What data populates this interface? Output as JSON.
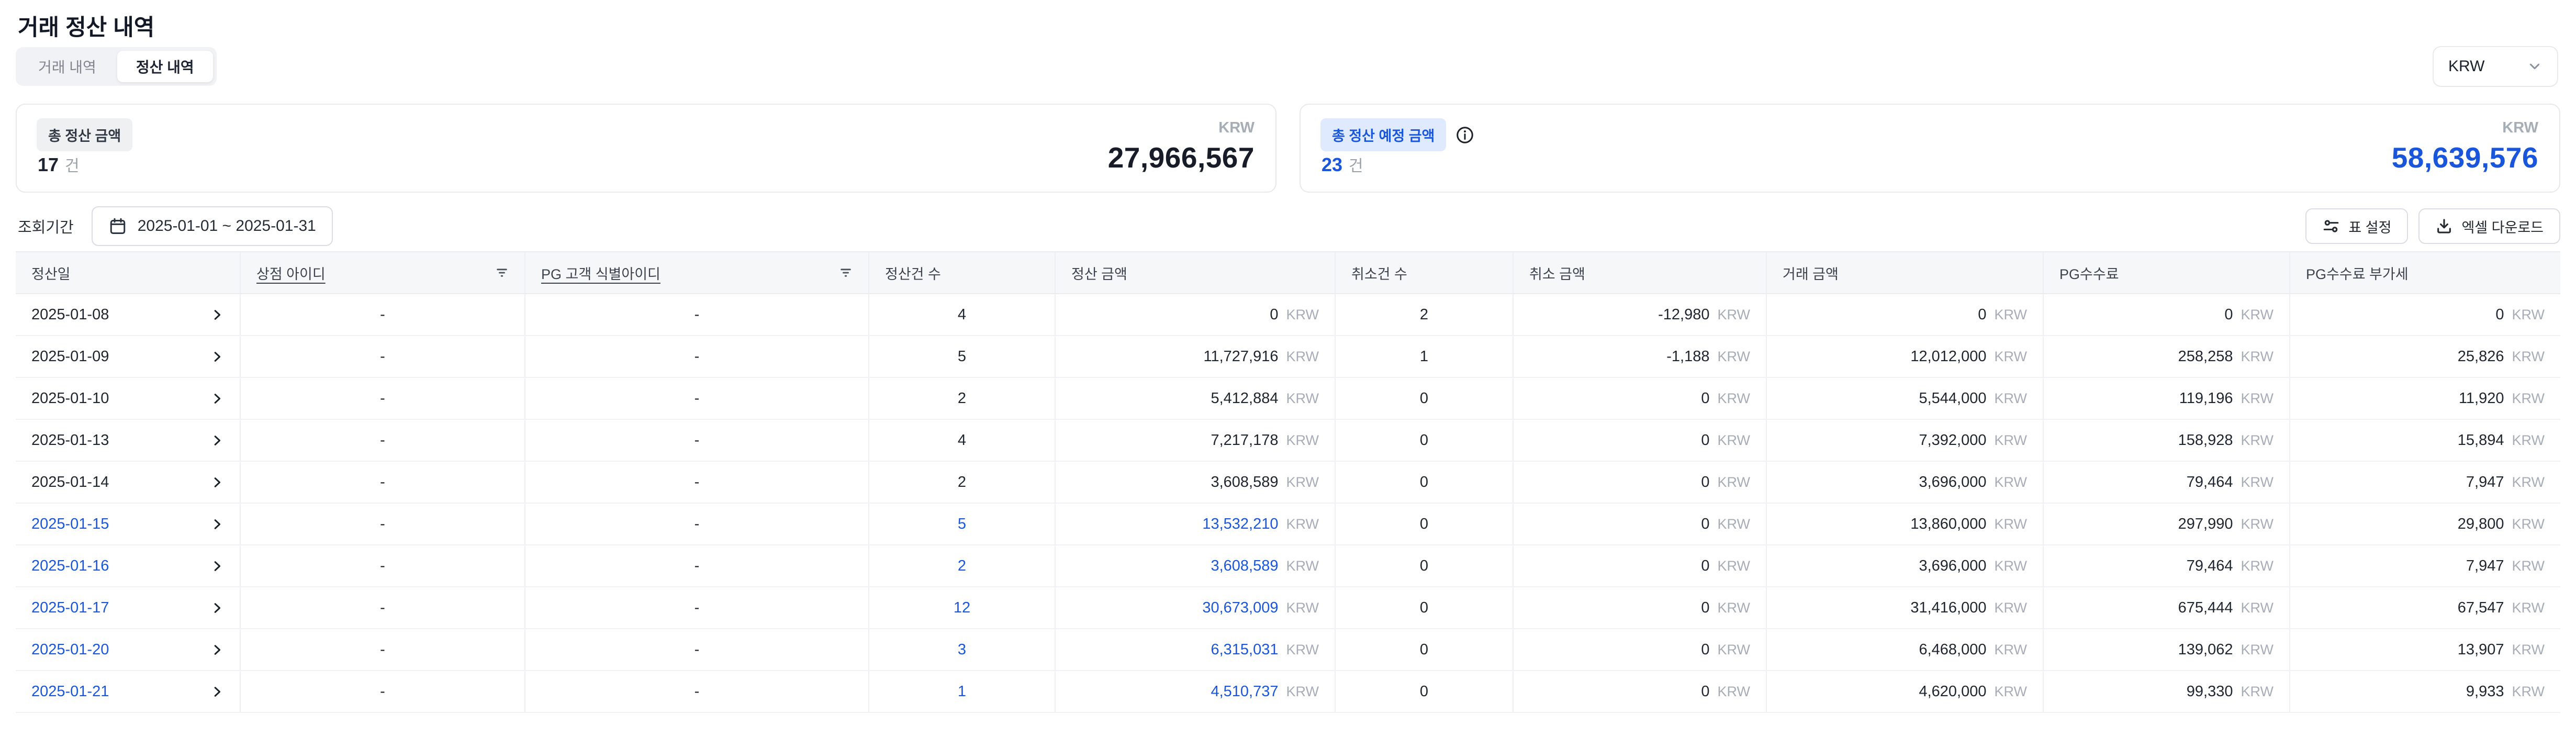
{
  "page": {
    "title": "거래 정산 내역"
  },
  "tabs": [
    {
      "label": "거래 내역",
      "active": false
    },
    {
      "label": "정산 내역",
      "active": true
    }
  ],
  "currency_select": {
    "value": "KRW",
    "icon": "chevron-down-icon"
  },
  "summary_cards": [
    {
      "badge": "총 정산 금액",
      "count": "17",
      "count_unit": "건",
      "currency": "KRW",
      "amount": "27,966,567",
      "accent": "dark"
    },
    {
      "badge": "총 정산 예정 금액",
      "count": "23",
      "count_unit": "건",
      "currency": "KRW",
      "amount": "58,639,576",
      "accent": "blue",
      "info_icon": "info-icon"
    }
  ],
  "filter": {
    "label": "조회기간",
    "date_range": "2025-01-01 ~ 2025-01-31",
    "icon": "calendar-icon"
  },
  "actions": [
    {
      "label": "표 설정",
      "icon": "sliders-icon"
    },
    {
      "label": "엑셀 다운로드",
      "icon": "download-icon"
    }
  ],
  "table": {
    "columns": [
      "정산일",
      "상점 아이디",
      "PG 고객 식별아이디",
      "정산건 수",
      "정산 금액",
      "취소건 수",
      "취소 금액",
      "거래 금액",
      "PG수수료",
      "PG수수료 부가세"
    ],
    "filterable_columns": [
      "상점 아이디",
      "PG 고객 식별아이디"
    ],
    "currency_suffix": "KRW",
    "colors": {
      "accent_blue": "#1a56db",
      "text": "#20262f",
      "muted": "#a6adb6"
    },
    "rows": [
      {
        "date": "2025-01-08",
        "store_id": "-",
        "pg_customer_id": "-",
        "settle_count": "4",
        "settle_amount": "0",
        "cancel_count": "2",
        "cancel_amount": "-12,980",
        "txn_amount": "0",
        "pg_fee": "0",
        "pg_fee_vat": "0",
        "highlight": false
      },
      {
        "date": "2025-01-09",
        "store_id": "-",
        "pg_customer_id": "-",
        "settle_count": "5",
        "settle_amount": "11,727,916",
        "cancel_count": "1",
        "cancel_amount": "-1,188",
        "txn_amount": "12,012,000",
        "pg_fee": "258,258",
        "pg_fee_vat": "25,826",
        "highlight": false
      },
      {
        "date": "2025-01-10",
        "store_id": "-",
        "pg_customer_id": "-",
        "settle_count": "2",
        "settle_amount": "5,412,884",
        "cancel_count": "0",
        "cancel_amount": "0",
        "txn_amount": "5,544,000",
        "pg_fee": "119,196",
        "pg_fee_vat": "11,920",
        "highlight": false
      },
      {
        "date": "2025-01-13",
        "store_id": "-",
        "pg_customer_id": "-",
        "settle_count": "4",
        "settle_amount": "7,217,178",
        "cancel_count": "0",
        "cancel_amount": "0",
        "txn_amount": "7,392,000",
        "pg_fee": "158,928",
        "pg_fee_vat": "15,894",
        "highlight": false
      },
      {
        "date": "2025-01-14",
        "store_id": "-",
        "pg_customer_id": "-",
        "settle_count": "2",
        "settle_amount": "3,608,589",
        "cancel_count": "0",
        "cancel_amount": "0",
        "txn_amount": "3,696,000",
        "pg_fee": "79,464",
        "pg_fee_vat": "7,947",
        "highlight": false
      },
      {
        "date": "2025-01-15",
        "store_id": "-",
        "pg_customer_id": "-",
        "settle_count": "5",
        "settle_amount": "13,532,210",
        "cancel_count": "0",
        "cancel_amount": "0",
        "txn_amount": "13,860,000",
        "pg_fee": "297,990",
        "pg_fee_vat": "29,800",
        "highlight": true
      },
      {
        "date": "2025-01-16",
        "store_id": "-",
        "pg_customer_id": "-",
        "settle_count": "2",
        "settle_amount": "3,608,589",
        "cancel_count": "0",
        "cancel_amount": "0",
        "txn_amount": "3,696,000",
        "pg_fee": "79,464",
        "pg_fee_vat": "7,947",
        "highlight": true
      },
      {
        "date": "2025-01-17",
        "store_id": "-",
        "pg_customer_id": "-",
        "settle_count": "12",
        "settle_amount": "30,673,009",
        "cancel_count": "0",
        "cancel_amount": "0",
        "txn_amount": "31,416,000",
        "pg_fee": "675,444",
        "pg_fee_vat": "67,547",
        "highlight": true
      },
      {
        "date": "2025-01-20",
        "store_id": "-",
        "pg_customer_id": "-",
        "settle_count": "3",
        "settle_amount": "6,315,031",
        "cancel_count": "0",
        "cancel_amount": "0",
        "txn_amount": "6,468,000",
        "pg_fee": "139,062",
        "pg_fee_vat": "13,907",
        "highlight": true
      },
      {
        "date": "2025-01-21",
        "store_id": "-",
        "pg_customer_id": "-",
        "settle_count": "1",
        "settle_amount": "4,510,737",
        "cancel_count": "0",
        "cancel_amount": "0",
        "txn_amount": "4,620,000",
        "pg_fee": "99,330",
        "pg_fee_vat": "9,933",
        "highlight": true
      }
    ]
  }
}
